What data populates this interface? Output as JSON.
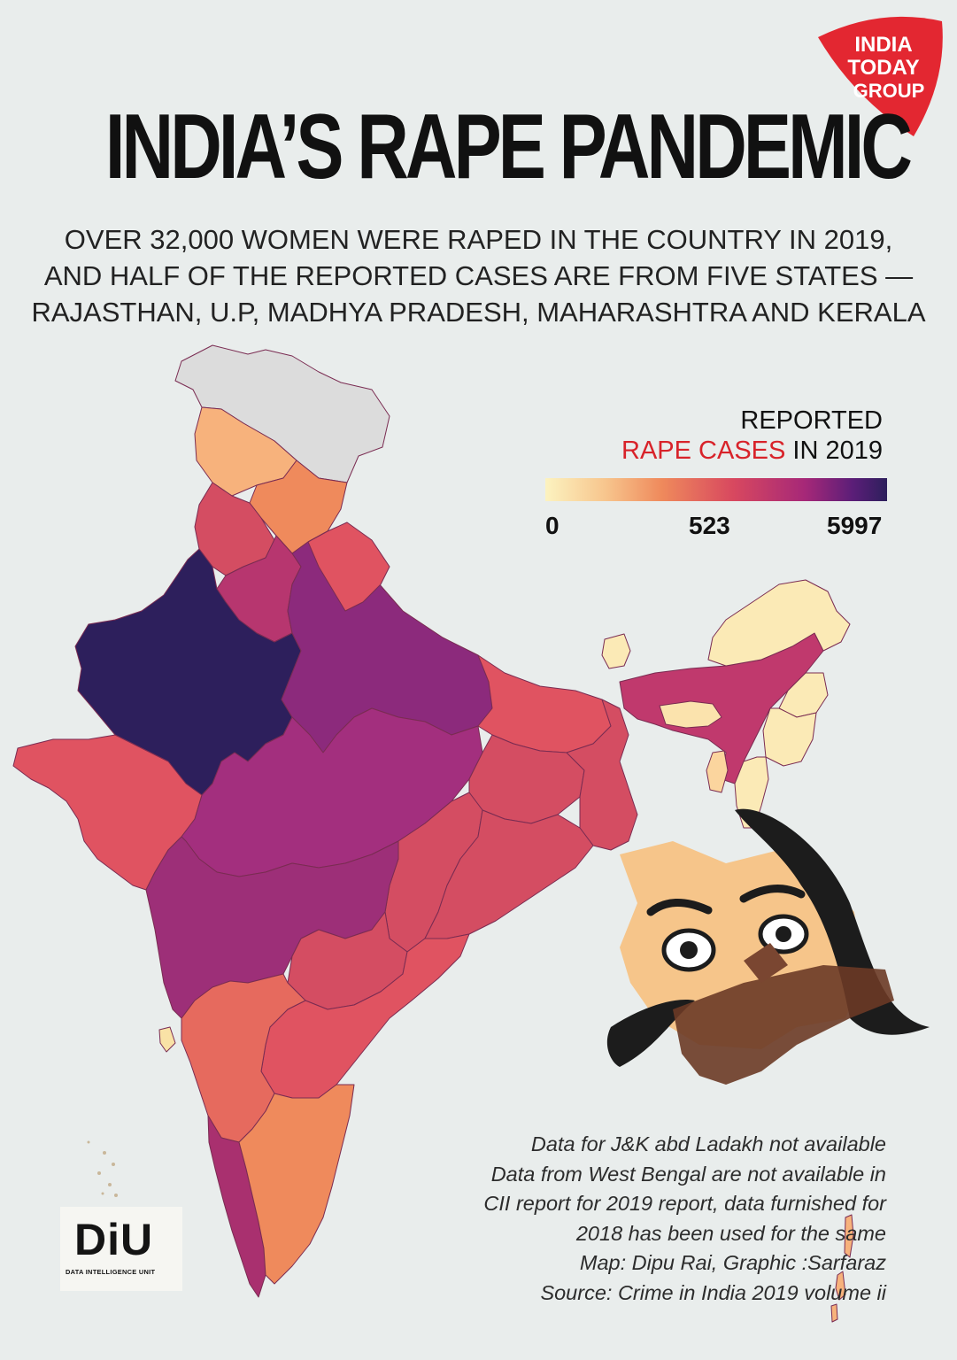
{
  "brand": {
    "line1": "INDIA",
    "line2": "TODAY",
    "line3": "GROUP",
    "color": "#e32731"
  },
  "title": "INDIA’S RAPE PANDEMIC",
  "subtitle": [
    "OVER 32,000 WOMEN WERE RAPED IN THE COUNTRY IN 2019,",
    "AND HALF OF THE REPORTED CASES ARE FROM FIVE STATES —",
    "RAJASTHAN, U.P, MADHYA PRADESH, MAHARASHTRA AND KERALA"
  ],
  "legend": {
    "line1": "REPORTED",
    "line2_accent": "RAPE CASES",
    "line2_rest": " IN 2019",
    "ticks": [
      "0",
      "523",
      "5997"
    ],
    "accent_color": "#d8232a",
    "gradient": [
      "#fcf3c0",
      "#ef8a5c",
      "#d8485f",
      "#a62878",
      "#2d1f5c"
    ]
  },
  "notes": [
    "Data for J&K abd Ladakh not available",
    "Data from West Bengal are not available in",
    "CII report for 2019 report, data furnished for",
    "2018 has been used for the same",
    "Map: Dipu Rai, Graphic :Sarfaraz",
    "Source: Crime in India 2019 volume ii"
  ],
  "diu": {
    "mark": "DiU",
    "caption": "DATA INTELLIGENCE UNIT"
  },
  "map_regions": [
    {
      "name": "Jammu & Kashmir and Ladakh",
      "color": "#dcdcdc"
    },
    {
      "name": "Himachal Pradesh",
      "color": "#f7b27c"
    },
    {
      "name": "Uttarakhand",
      "color": "#ef8a5c"
    },
    {
      "name": "Punjab",
      "color": "#d44d62"
    },
    {
      "name": "Haryana",
      "color": "#b7366f"
    },
    {
      "name": "Rajasthan",
      "color": "#2d1f5c"
    },
    {
      "name": "Uttar Pradesh",
      "color": "#8c2a7c"
    },
    {
      "name": "Gujarat",
      "color": "#e05361"
    },
    {
      "name": "Madhya Pradesh",
      "color": "#a32f7e"
    },
    {
      "name": "Bihar",
      "color": "#e05361"
    },
    {
      "name": "Jharkhand",
      "color": "#d44d62"
    },
    {
      "name": "West Bengal",
      "color": "#d44d62"
    },
    {
      "name": "Chhattisgarh",
      "color": "#d44d62"
    },
    {
      "name": "Odisha",
      "color": "#d44d62"
    },
    {
      "name": "Maharashtra",
      "color": "#9d2f78"
    },
    {
      "name": "Telangana",
      "color": "#d44d62"
    },
    {
      "name": "Andhra Pradesh",
      "color": "#e05361"
    },
    {
      "name": "Karnataka",
      "color": "#e66a5e"
    },
    {
      "name": "Goa",
      "color": "#f9e2a6"
    },
    {
      "name": "Kerala",
      "color": "#a9306f"
    },
    {
      "name": "Tamil Nadu",
      "color": "#ef8a5c"
    },
    {
      "name": "Sikkim",
      "color": "#fbeab6"
    },
    {
      "name": "Assam",
      "color": "#c0396d"
    },
    {
      "name": "Arunachal Pradesh",
      "color": "#fbeab6"
    },
    {
      "name": "Meghalaya",
      "color": "#fbe3ad"
    },
    {
      "name": "Nagaland",
      "color": "#fbeab6"
    },
    {
      "name": "Manipur",
      "color": "#fbeab6"
    },
    {
      "name": "Mizoram",
      "color": "#fbeab6"
    },
    {
      "name": "Tripura",
      "color": "#fbd59e"
    },
    {
      "name": "Andaman & Nicobar Islands",
      "color": "#f7b27c"
    }
  ]
}
